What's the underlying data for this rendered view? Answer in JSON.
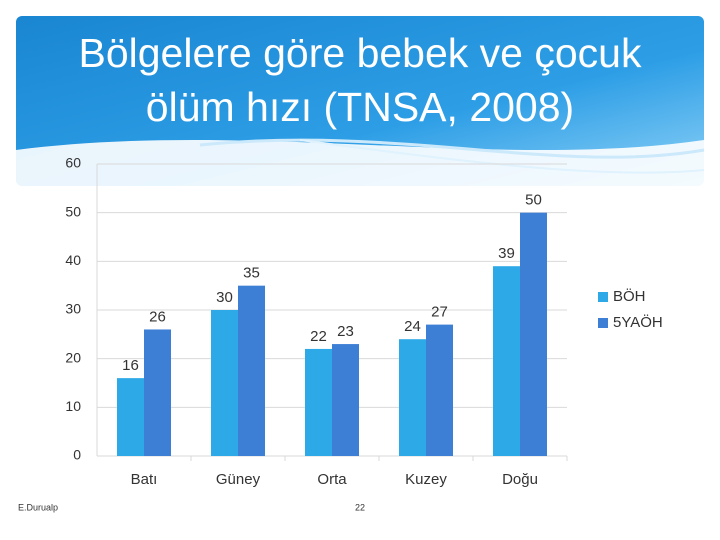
{
  "chart_data": {
    "type": "bar",
    "title": "Bölgelere göre bebek ve çocuk ölüm hızı (TNSA, 2008)",
    "categories": [
      "Batı",
      "Güney",
      "Orta",
      "Kuzey",
      "Doğu"
    ],
    "series": [
      {
        "name": "BÖH",
        "color": "#2ca9e6",
        "values": [
          16,
          30,
          22,
          24,
          39
        ]
      },
      {
        "name": "5YAÖH",
        "color": "#3e7fd6",
        "values": [
          26,
          35,
          23,
          27,
          50
        ]
      }
    ],
    "ylim": [
      0,
      60
    ],
    "yticks": [
      0,
      10,
      20,
      30,
      40,
      50,
      60
    ],
    "grid": true,
    "legend": "right"
  },
  "footer": {
    "author": "E.Durualp",
    "page": "22"
  }
}
